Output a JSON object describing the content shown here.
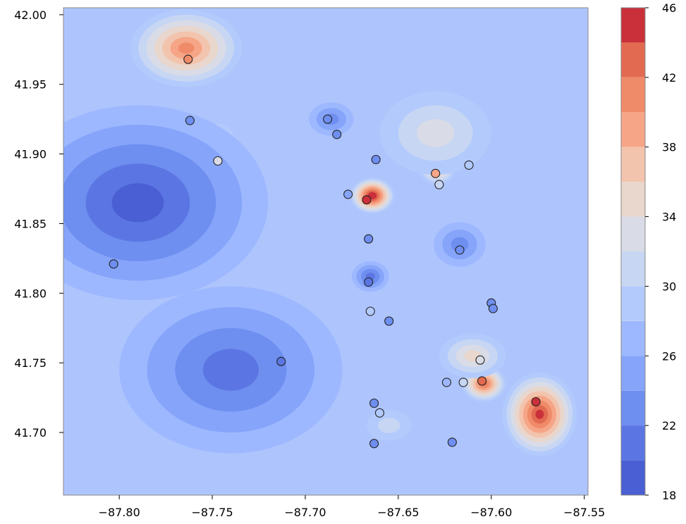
{
  "chart_data": {
    "type": "heatmap",
    "title": "",
    "xlabel": "",
    "ylabel": "",
    "xlim": [
      -87.83,
      -87.548
    ],
    "ylim": [
      41.655,
      42.005
    ],
    "x_ticks": [
      {
        "value": -87.8,
        "label": "−87.80"
      },
      {
        "value": -87.75,
        "label": "−87.75"
      },
      {
        "value": -87.7,
        "label": "−87.70"
      },
      {
        "value": -87.65,
        "label": "−87.65"
      },
      {
        "value": -87.6,
        "label": "−87.60"
      },
      {
        "value": -87.55,
        "label": "−87.55"
      }
    ],
    "y_ticks": [
      {
        "value": 41.7,
        "label": "41.70"
      },
      {
        "value": 41.75,
        "label": "41.75"
      },
      {
        "value": 41.8,
        "label": "41.80"
      },
      {
        "value": 41.85,
        "label": "41.85"
      },
      {
        "value": 41.9,
        "label": "41.90"
      },
      {
        "value": 41.95,
        "label": "41.95"
      },
      {
        "value": 42.0,
        "label": "42.00"
      }
    ],
    "colorbar": {
      "min": 18,
      "max": 46,
      "levels": [
        18,
        20,
        22,
        24,
        26,
        28,
        30,
        32,
        34,
        36,
        38,
        40,
        42,
        44,
        46
      ],
      "tick_labels": [
        "18",
        "22",
        "26",
        "30",
        "34",
        "38",
        "42",
        "46"
      ],
      "level_colors": [
        "#4a5fd3",
        "#5b76e2",
        "#6e8ef0",
        "#85a4fa",
        "#9db8fe",
        "#b3cafc",
        "#c7d6f3",
        "#d9dce6",
        "#e9d6cc",
        "#f3c4ad",
        "#f6a587",
        "#f08b69",
        "#e26a51",
        "#c9303a"
      ]
    },
    "stations": [
      {
        "lon": -87.763,
        "lat": 41.968,
        "value": 40
      },
      {
        "lon": -87.762,
        "lat": 41.924,
        "value": 23
      },
      {
        "lon": -87.747,
        "lat": 41.895,
        "value": 32
      },
      {
        "lon": -87.803,
        "lat": 41.821,
        "value": 22
      },
      {
        "lon": -87.713,
        "lat": 41.751,
        "value": 21
      },
      {
        "lon": -87.688,
        "lat": 41.925,
        "value": 22
      },
      {
        "lon": -87.683,
        "lat": 41.914,
        "value": 22
      },
      {
        "lon": -87.662,
        "lat": 41.896,
        "value": 22
      },
      {
        "lon": -87.677,
        "lat": 41.871,
        "value": 25
      },
      {
        "lon": -87.667,
        "lat": 41.867,
        "value": 45
      },
      {
        "lon": -87.666,
        "lat": 41.839,
        "value": 22
      },
      {
        "lon": -87.666,
        "lat": 41.808,
        "value": 20
      },
      {
        "lon": -87.665,
        "lat": 41.787,
        "value": 28
      },
      {
        "lon": -87.655,
        "lat": 41.78,
        "value": 23
      },
      {
        "lon": -87.63,
        "lat": 41.886,
        "value": 39
      },
      {
        "lon": -87.628,
        "lat": 41.878,
        "value": 30
      },
      {
        "lon": -87.612,
        "lat": 41.892,
        "value": 29
      },
      {
        "lon": -87.617,
        "lat": 41.831,
        "value": 22
      },
      {
        "lon": -87.6,
        "lat": 41.793,
        "value": 23
      },
      {
        "lon": -87.599,
        "lat": 41.789,
        "value": 22
      },
      {
        "lon": -87.606,
        "lat": 41.752,
        "value": 33
      },
      {
        "lon": -87.605,
        "lat": 41.737,
        "value": 42
      },
      {
        "lon": -87.615,
        "lat": 41.736,
        "value": 31
      },
      {
        "lon": -87.624,
        "lat": 41.736,
        "value": 27
      },
      {
        "lon": -87.576,
        "lat": 41.722,
        "value": 45
      },
      {
        "lon": -87.663,
        "lat": 41.721,
        "value": 23
      },
      {
        "lon": -87.66,
        "lat": 41.714,
        "value": 29
      },
      {
        "lon": -87.663,
        "lat": 41.692,
        "value": 23
      },
      {
        "lon": -87.621,
        "lat": 41.693,
        "value": 22
      }
    ],
    "hotspots": [
      {
        "lon": -87.764,
        "lat": 41.976,
        "value": 41,
        "rx": 0.03,
        "ry": 0.028
      },
      {
        "lon": -87.664,
        "lat": 41.87,
        "value": 46,
        "rx": 0.012,
        "ry": 0.013
      },
      {
        "lon": -87.629,
        "lat": 41.89,
        "value": 39,
        "rx": 0.01,
        "ry": 0.012
      },
      {
        "lon": -87.746,
        "lat": 41.877,
        "value": 32,
        "rx": 0.013,
        "ry": 0.045
      },
      {
        "lon": -87.604,
        "lat": 41.735,
        "value": 43,
        "rx": 0.012,
        "ry": 0.013
      },
      {
        "lon": -87.574,
        "lat": 41.713,
        "value": 45,
        "rx": 0.02,
        "ry": 0.03
      },
      {
        "lon": -87.63,
        "lat": 41.915,
        "value": 32,
        "rx": 0.03,
        "ry": 0.03
      },
      {
        "lon": -87.655,
        "lat": 41.705,
        "value": 30,
        "rx": 0.012,
        "ry": 0.011
      },
      {
        "lon": -87.61,
        "lat": 41.755,
        "value": 34,
        "rx": 0.018,
        "ry": 0.016
      },
      {
        "lon": -87.79,
        "lat": 41.865,
        "value": 18.5,
        "rx": 0.07,
        "ry": 0.07
      },
      {
        "lon": -87.74,
        "lat": 41.745,
        "value": 20,
        "rx": 0.06,
        "ry": 0.06
      },
      {
        "lon": -87.686,
        "lat": 41.925,
        "value": 22,
        "rx": 0.012,
        "ry": 0.012
      },
      {
        "lon": -87.665,
        "lat": 41.812,
        "value": 20,
        "rx": 0.01,
        "ry": 0.011
      },
      {
        "lon": -87.617,
        "lat": 41.835,
        "value": 22,
        "rx": 0.014,
        "ry": 0.016
      }
    ]
  }
}
